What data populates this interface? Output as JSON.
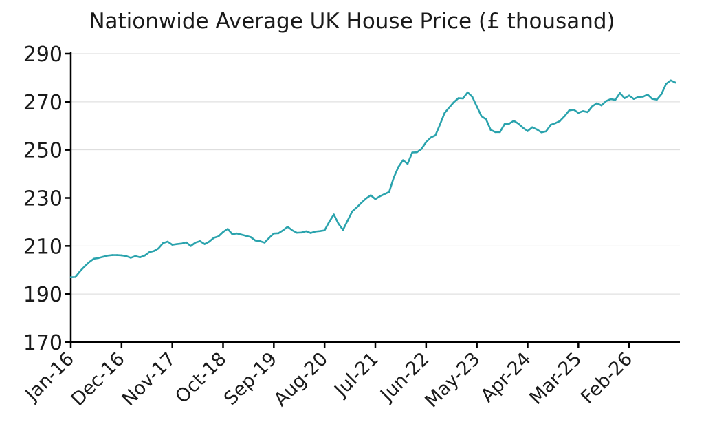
{
  "chart_data": {
    "type": "line",
    "title": "Nationwide Average UK House Price (£ thousand)",
    "xlabel": "",
    "ylabel": "",
    "ylim": [
      170,
      290
    ],
    "yticks": [
      170,
      190,
      210,
      230,
      250,
      270,
      290
    ],
    "xticks": [
      "Jan-16",
      "Dec-16",
      "Nov-17",
      "Oct-18",
      "Sep-19",
      "Aug-20",
      "Jul-21",
      "Jun-22",
      "May-23",
      "Apr-24",
      "Mar-25",
      "Feb-26"
    ],
    "x_start": "Jan-16",
    "x_end": "Apr-26",
    "grid": true,
    "series": [
      {
        "color": "#2aa3ad",
        "values": [
          197.0,
          197.1,
          199.5,
          201.5,
          203.3,
          204.7,
          205.0,
          205.5,
          206.0,
          206.2,
          206.2,
          206.1,
          205.8,
          205.1,
          205.8,
          205.3,
          206.0,
          207.4,
          207.9,
          209.0,
          211.2,
          211.8,
          210.5,
          210.8,
          211.0,
          211.5,
          210.0,
          211.4,
          212.0,
          210.8,
          211.8,
          213.4,
          214.0,
          215.8,
          217.1,
          214.9,
          215.2,
          214.7,
          214.2,
          213.7,
          212.3,
          212.0,
          211.4,
          213.4,
          215.2,
          215.3,
          216.5,
          218.0,
          216.5,
          215.5,
          215.6,
          216.1,
          215.4,
          216.0,
          216.2,
          216.5,
          220.0,
          223.1,
          219.3,
          216.7,
          220.6,
          224.4,
          226.1,
          228.0,
          229.8,
          231.1,
          229.5,
          230.7,
          231.6,
          232.5,
          238.5,
          242.9,
          245.7,
          244.2,
          248.9,
          249.0,
          250.4,
          253.2,
          255.1,
          256.0,
          260.5,
          265.3,
          267.6,
          269.8,
          271.5,
          271.4,
          273.9,
          272.1,
          268.0,
          264.0,
          262.7,
          258.3,
          257.4,
          257.4,
          260.7,
          260.9,
          262.1,
          260.9,
          259.2,
          257.8,
          259.4,
          258.5,
          257.3,
          257.7,
          260.4,
          261.1,
          262.0,
          264.0,
          266.4,
          266.7,
          265.4,
          266.1,
          265.7,
          268.1,
          269.4,
          268.5,
          270.3,
          271.1,
          270.8,
          273.6,
          271.5,
          272.6,
          271.2,
          272.0,
          272.1,
          273.0,
          271.2,
          270.9,
          273.2,
          277.4,
          278.9,
          278.0
        ]
      }
    ]
  }
}
